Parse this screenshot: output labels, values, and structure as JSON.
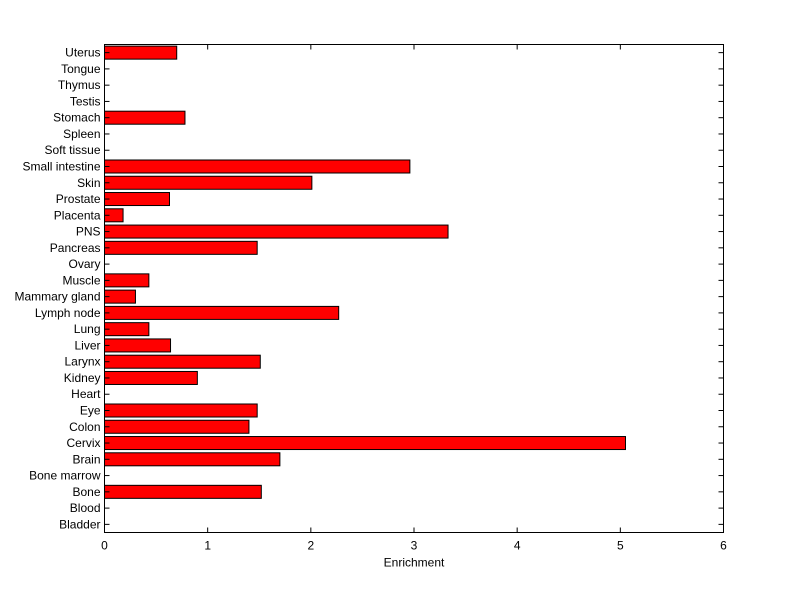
{
  "chart_data": {
    "type": "bar",
    "orientation": "horizontal",
    "title": "",
    "xlabel": "Enrichment",
    "ylabel": "",
    "xlim": [
      0,
      6
    ],
    "xticks": [
      0,
      1,
      2,
      3,
      4,
      5,
      6
    ],
    "grid": false,
    "legend": "none",
    "bar_color": "#ff0000",
    "bar_edge_color": "#000000",
    "categories": [
      "Bladder",
      "Blood",
      "Bone",
      "Bone marrow",
      "Brain",
      "Cervix",
      "Colon",
      "Eye",
      "Heart",
      "Kidney",
      "Larynx",
      "Liver",
      "Lung",
      "Lymph node",
      "Mammary gland",
      "Muscle",
      "Ovary",
      "Pancreas",
      "PNS",
      "Placenta",
      "Prostate",
      "Skin",
      "Small intestine",
      "Soft tissue",
      "Spleen",
      "Stomach",
      "Testis",
      "Thymus",
      "Tongue",
      "Uterus"
    ],
    "values": [
      0,
      0,
      1.52,
      0,
      1.7,
      5.05,
      1.4,
      1.48,
      0,
      0.9,
      1.51,
      0.64,
      0.43,
      2.27,
      0.3,
      0.43,
      0,
      1.48,
      3.33,
      0.18,
      0.63,
      2.01,
      2.96,
      0,
      0,
      0.78,
      0,
      0,
      0,
      0.7
    ]
  }
}
